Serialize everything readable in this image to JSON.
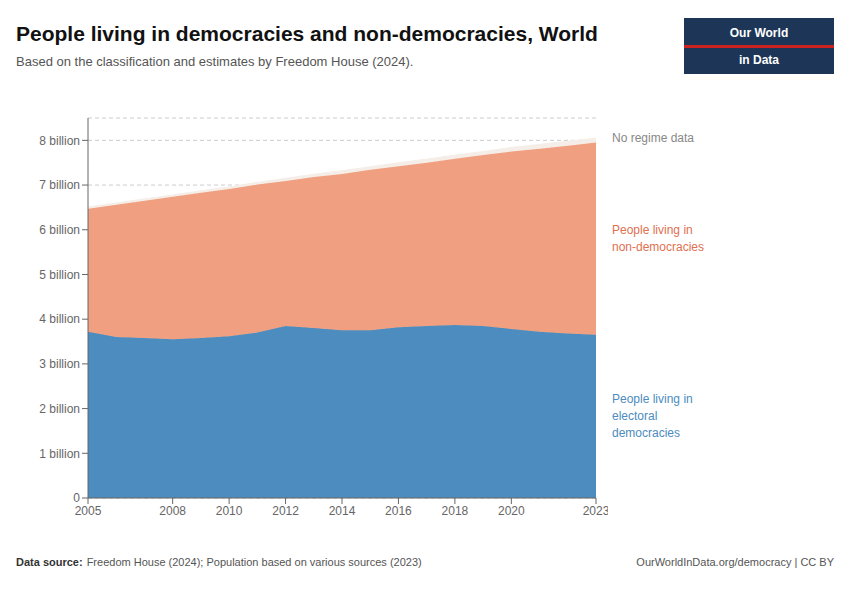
{
  "chart_data": {
    "type": "area",
    "stacked": true,
    "grid": true,
    "title": "People living in democracies and non-democracies, World",
    "subtitle": "Based on the classification and estimates by Freedom House (2024).",
    "source_bold": "Data source:",
    "source_rest": "Freedom House (2024); Population based on various sources (2023)",
    "footer_right": "OurWorldInData.org/democracy | CC BY",
    "logo": [
      "Our World",
      "in Data"
    ],
    "logo_bg": "#1D3557",
    "logo_red": "#CC2222",
    "x": [
      2005,
      2006,
      2007,
      2008,
      2009,
      2010,
      2011,
      2012,
      2013,
      2014,
      2015,
      2016,
      2017,
      2018,
      2019,
      2020,
      2021,
      2022,
      2023
    ],
    "xlim": [
      2005,
      2023
    ],
    "xticks": [
      2005,
      2008,
      2010,
      2012,
      2014,
      2016,
      2018,
      2020,
      2023
    ],
    "ylim": [
      0,
      8.5
    ],
    "yticks": [
      0,
      {
        "value": 1,
        "label": "1 billion"
      },
      {
        "value": 2,
        "label": "2 billion"
      },
      {
        "value": 3,
        "label": "3 billion"
      },
      {
        "value": 4,
        "label": "4 billion"
      },
      {
        "value": 5,
        "label": "5 billion"
      },
      {
        "value": 6,
        "label": "6 billion"
      },
      {
        "value": 7,
        "label": "7 billion"
      },
      {
        "value": 8,
        "label": "8 billion"
      }
    ],
    "series": [
      {
        "name": "People living in\nelectoral\ndemocracies",
        "color": "#4C8CBE",
        "label_color": "#4C8CBE",
        "values": [
          3.72,
          3.6,
          3.58,
          3.55,
          3.58,
          3.62,
          3.7,
          3.85,
          3.8,
          3.75,
          3.75,
          3.82,
          3.85,
          3.87,
          3.85,
          3.78,
          3.72,
          3.68,
          3.65
        ]
      },
      {
        "name": "People living in\nnon-democracies",
        "color": "#F0A080",
        "label_color": "#E07050",
        "values": [
          2.75,
          2.96,
          3.07,
          3.19,
          3.25,
          3.29,
          3.31,
          3.24,
          3.38,
          3.5,
          3.59,
          3.6,
          3.65,
          3.72,
          3.82,
          3.97,
          4.09,
          4.2,
          4.3
        ]
      },
      {
        "name": "No regime data",
        "color": "#F5EEE8",
        "label_color": "#888888",
        "values": [
          0.04,
          0.04,
          0.04,
          0.04,
          0.04,
          0.05,
          0.05,
          0.06,
          0.06,
          0.07,
          0.07,
          0.08,
          0.08,
          0.08,
          0.08,
          0.09,
          0.1,
          0.1,
          0.1
        ]
      }
    ]
  }
}
